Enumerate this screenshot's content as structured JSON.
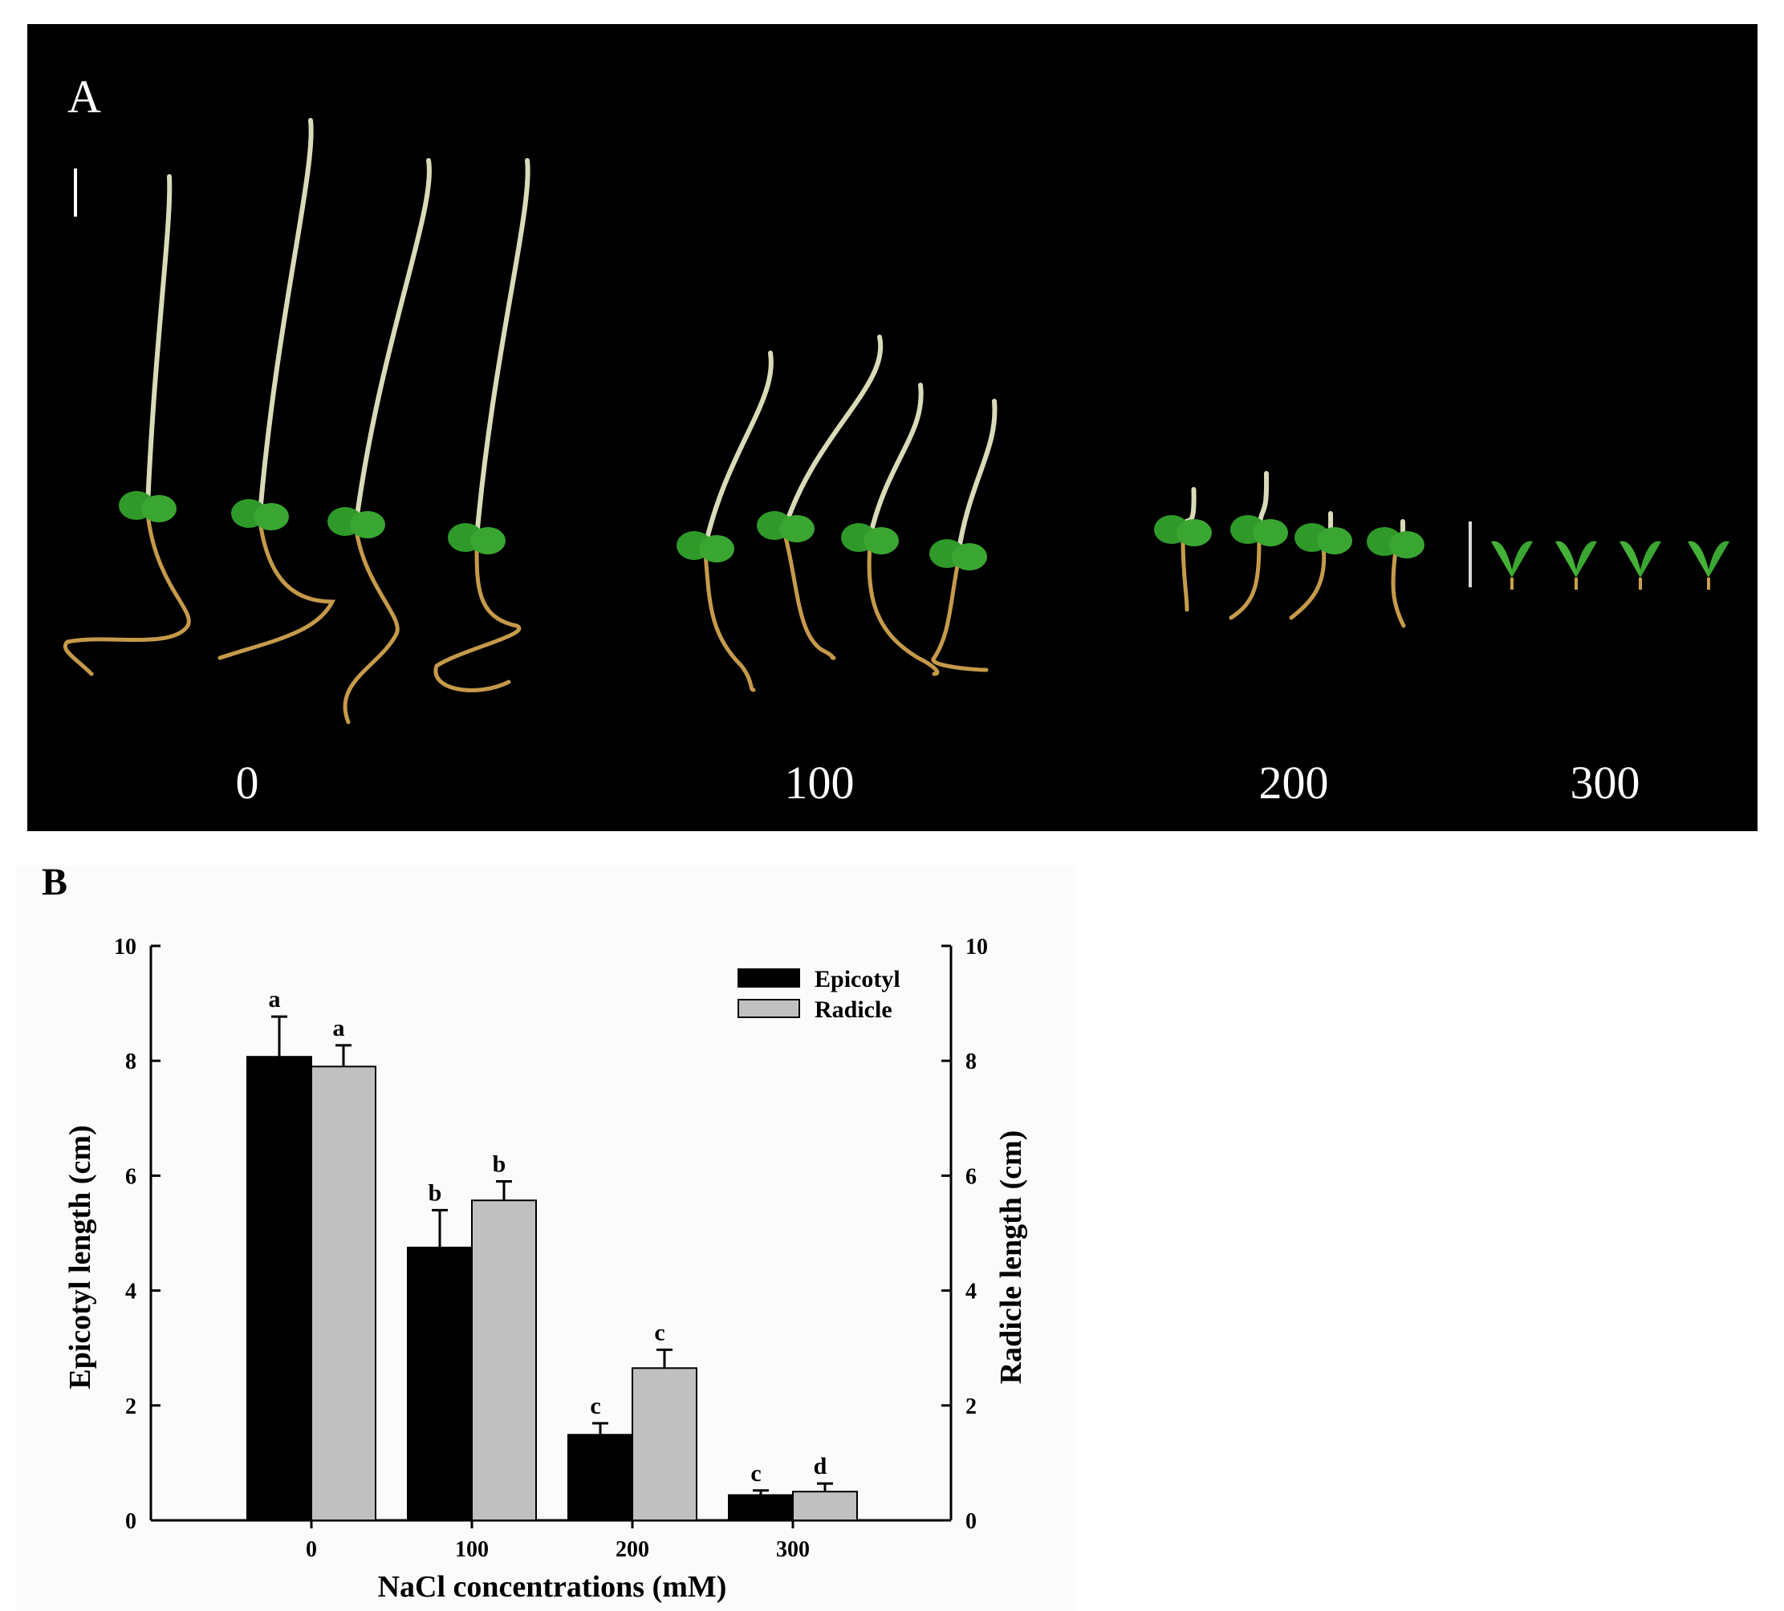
{
  "photo_panel": {
    "label": "A",
    "groups": [
      {
        "label": "0",
        "seedlings": 4,
        "stage": "long"
      },
      {
        "label": "100",
        "seedlings": 4,
        "stage": "medium"
      },
      {
        "label": "200",
        "seedlings": 4,
        "stage": "short"
      },
      {
        "label": "300",
        "seedlings": 4,
        "stage": "sprout"
      }
    ],
    "background_color": "#000000",
    "stem_color": "#d9dbb8",
    "root_color": "#c69a4a",
    "leaf_color": "#2f9a2a"
  },
  "chart_panel_label": "B",
  "chart_data": {
    "type": "bar",
    "xlabel": "NaCl concentrations (mM)",
    "ylabel": "Epicotyl length (cm)",
    "y2label": "Radicle length (cm)",
    "categories": [
      "0",
      "100",
      "200",
      "300"
    ],
    "ylim": [
      0,
      10
    ],
    "yticks": [
      "0",
      "2",
      "4",
      "6",
      "8",
      "10"
    ],
    "legend_position": "top-right",
    "grid": false,
    "series": [
      {
        "name": "Epicotyl",
        "color": "#000000",
        "values": [
          8.07,
          4.75,
          1.49,
          0.44
        ],
        "errors": [
          0.7,
          0.65,
          0.2,
          0.08
        ],
        "letters": [
          "a",
          "b",
          "c",
          "c"
        ]
      },
      {
        "name": "Radicle",
        "color": "#c0c0c0",
        "values": [
          7.9,
          5.57,
          2.65,
          0.5
        ],
        "errors": [
          0.37,
          0.33,
          0.32,
          0.14
        ],
        "letters": [
          "a",
          "b",
          "c",
          "d"
        ]
      }
    ]
  }
}
